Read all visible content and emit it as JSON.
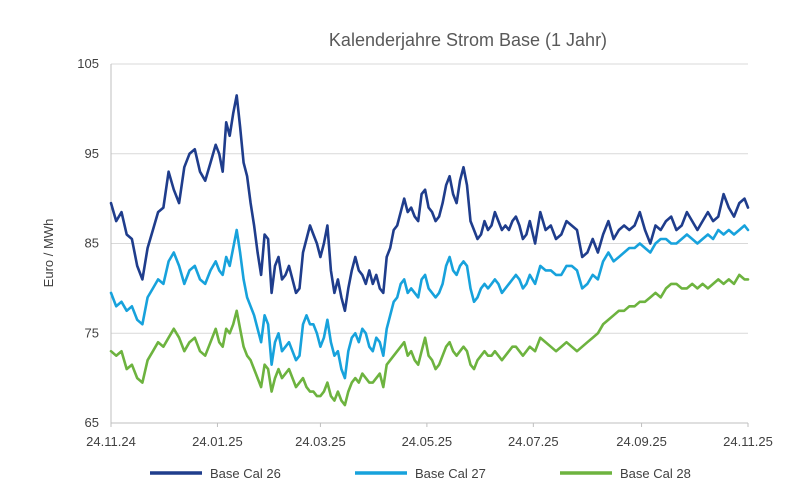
{
  "chart_data": {
    "type": "line",
    "title": "Kalenderjahre Strom Base (1 Jahr)",
    "xlabel": "",
    "ylabel": "Euro / MWh",
    "ylim": [
      65,
      105
    ],
    "yticks": [
      65,
      75,
      85,
      95,
      105
    ],
    "x_tick_labels": [
      "24.11.24",
      "24.01.25",
      "24.03.25",
      "24.05.25",
      "24.07.25",
      "24.09.25",
      "24.11.25"
    ],
    "x_tick_positions": [
      0,
      61,
      120,
      181,
      242,
      304,
      365
    ],
    "x_range": [
      0,
      365
    ],
    "grid": true,
    "legend_position": "bottom",
    "series": [
      {
        "name": "Base Cal 26",
        "color": "#1f3d8c",
        "x": [
          0,
          3,
          6,
          9,
          12,
          15,
          18,
          21,
          24,
          27,
          30,
          33,
          36,
          39,
          42,
          45,
          48,
          51,
          54,
          57,
          60,
          62,
          64,
          66,
          68,
          70,
          72,
          74,
          76,
          78,
          80,
          82,
          84,
          86,
          88,
          90,
          92,
          94,
          96,
          98,
          100,
          102,
          104,
          106,
          108,
          110,
          112,
          114,
          116,
          118,
          120,
          122,
          124,
          126,
          128,
          130,
          132,
          134,
          136,
          138,
          140,
          142,
          144,
          146,
          148,
          150,
          152,
          154,
          156,
          158,
          160,
          162,
          164,
          166,
          168,
          170,
          172,
          174,
          176,
          178,
          180,
          182,
          184,
          186,
          188,
          190,
          192,
          194,
          196,
          198,
          200,
          202,
          204,
          206,
          208,
          210,
          212,
          214,
          216,
          218,
          220,
          222,
          224,
          226,
          228,
          230,
          232,
          234,
          236,
          238,
          240,
          243,
          246,
          249,
          252,
          255,
          258,
          261,
          264,
          267,
          270,
          273,
          276,
          279,
          282,
          285,
          288,
          291,
          294,
          297,
          300,
          303,
          306,
          309,
          312,
          315,
          318,
          321,
          324,
          327,
          330,
          333,
          336,
          339,
          342,
          345,
          348,
          351,
          354,
          357,
          360,
          363,
          365
        ],
        "values": [
          89.5,
          87.5,
          88.5,
          86.0,
          85.5,
          82.5,
          81.0,
          84.5,
          86.5,
          88.5,
          89.0,
          93.0,
          91.0,
          89.5,
          93.5,
          95.0,
          95.5,
          93.0,
          92.0,
          94.0,
          96.0,
          95.0,
          93.0,
          98.5,
          97.0,
          99.5,
          101.5,
          98.0,
          94.0,
          92.5,
          89.5,
          87.0,
          84.0,
          81.5,
          86.0,
          85.5,
          79.5,
          82.5,
          83.5,
          81.0,
          81.5,
          82.5,
          81.0,
          79.5,
          80.0,
          84.0,
          85.5,
          87.0,
          86.0,
          85.0,
          83.5,
          85.0,
          87.0,
          82.0,
          79.5,
          81.0,
          79.0,
          77.5,
          80.0,
          82.0,
          83.5,
          82.0,
          81.5,
          80.5,
          82.0,
          80.5,
          81.5,
          80.0,
          79.5,
          83.5,
          84.5,
          86.5,
          87.0,
          88.5,
          90.0,
          88.5,
          89.0,
          88.0,
          87.5,
          90.5,
          91.0,
          89.0,
          88.5,
          87.5,
          88.0,
          89.5,
          91.5,
          92.5,
          90.5,
          89.5,
          92.0,
          93.5,
          91.5,
          87.5,
          86.5,
          85.5,
          86.0,
          87.5,
          86.5,
          87.0,
          88.5,
          87.5,
          86.5,
          87.0,
          86.5,
          87.5,
          88.0,
          87.0,
          85.5,
          86.0,
          87.5,
          85.0,
          88.5,
          86.5,
          87.0,
          85.5,
          86.0,
          87.5,
          87.0,
          86.5,
          83.5,
          84.0,
          85.5,
          84.0,
          86.0,
          87.5,
          85.5,
          86.5,
          87.0,
          86.5,
          87.0,
          88.5,
          86.5,
          85.0,
          87.0,
          86.5,
          87.5,
          88.0,
          86.5,
          87.0,
          88.5,
          87.5,
          86.5,
          87.5,
          88.5,
          87.5,
          88.0,
          90.5,
          89.0,
          88.0,
          89.5,
          90.0,
          89.0
        ]
      },
      {
        "name": "Base Cal 27",
        "color": "#17a2dc",
        "x": [
          0,
          3,
          6,
          9,
          12,
          15,
          18,
          21,
          24,
          27,
          30,
          33,
          36,
          39,
          42,
          45,
          48,
          51,
          54,
          57,
          60,
          62,
          64,
          66,
          68,
          70,
          72,
          74,
          76,
          78,
          80,
          82,
          84,
          86,
          88,
          90,
          92,
          94,
          96,
          98,
          100,
          102,
          104,
          106,
          108,
          110,
          112,
          114,
          116,
          118,
          120,
          122,
          124,
          126,
          128,
          130,
          132,
          134,
          136,
          138,
          140,
          142,
          144,
          146,
          148,
          150,
          152,
          154,
          156,
          158,
          160,
          162,
          164,
          166,
          168,
          170,
          172,
          174,
          176,
          178,
          180,
          182,
          184,
          186,
          188,
          190,
          192,
          194,
          196,
          198,
          200,
          202,
          204,
          206,
          208,
          210,
          212,
          214,
          216,
          218,
          220,
          222,
          224,
          226,
          228,
          230,
          232,
          234,
          236,
          238,
          240,
          243,
          246,
          249,
          252,
          255,
          258,
          261,
          264,
          267,
          270,
          273,
          276,
          279,
          282,
          285,
          288,
          291,
          294,
          297,
          300,
          303,
          306,
          309,
          312,
          315,
          318,
          321,
          324,
          327,
          330,
          333,
          336,
          339,
          342,
          345,
          348,
          351,
          354,
          357,
          360,
          363,
          365
        ],
        "values": [
          79.5,
          78.0,
          78.5,
          77.5,
          78.0,
          76.5,
          76.0,
          79.0,
          80.0,
          81.0,
          80.5,
          83.0,
          84.0,
          82.5,
          80.5,
          82.0,
          82.5,
          81.0,
          80.5,
          82.0,
          83.0,
          82.0,
          81.5,
          83.5,
          82.5,
          84.5,
          86.5,
          84.0,
          81.0,
          79.0,
          78.0,
          77.0,
          75.5,
          74.0,
          77.0,
          76.0,
          71.5,
          74.0,
          75.0,
          73.0,
          73.5,
          74.0,
          73.0,
          72.0,
          72.5,
          76.0,
          77.0,
          76.0,
          76.0,
          75.0,
          73.5,
          74.5,
          76.5,
          74.0,
          72.5,
          73.0,
          71.0,
          70.0,
          73.0,
          74.5,
          75.0,
          74.0,
          75.5,
          75.0,
          73.5,
          73.0,
          74.5,
          74.0,
          72.5,
          75.5,
          77.0,
          78.5,
          79.0,
          80.5,
          81.0,
          79.5,
          80.0,
          79.5,
          79.0,
          81.0,
          81.5,
          80.0,
          79.5,
          79.0,
          79.5,
          80.5,
          82.5,
          83.5,
          82.0,
          81.5,
          82.5,
          83.0,
          82.5,
          80.0,
          78.5,
          79.0,
          80.0,
          80.5,
          80.0,
          80.5,
          81.0,
          80.5,
          79.5,
          80.0,
          80.5,
          81.0,
          81.5,
          81.0,
          80.0,
          80.5,
          81.5,
          80.5,
          82.5,
          82.0,
          82.0,
          81.5,
          81.5,
          82.5,
          82.5,
          82.0,
          80.0,
          80.5,
          81.5,
          81.0,
          83.0,
          84.0,
          83.0,
          83.5,
          84.0,
          84.5,
          84.5,
          85.0,
          84.5,
          84.0,
          85.0,
          85.5,
          85.5,
          85.0,
          85.0,
          85.5,
          86.0,
          85.5,
          85.0,
          85.5,
          86.0,
          85.5,
          86.5,
          86.0,
          86.5,
          86.0,
          86.5,
          87.0,
          86.5
        ]
      },
      {
        "name": "Base Cal 28",
        "color": "#6db33f",
        "x": [
          0,
          3,
          6,
          9,
          12,
          15,
          18,
          21,
          24,
          27,
          30,
          33,
          36,
          39,
          42,
          45,
          48,
          51,
          54,
          57,
          60,
          62,
          64,
          66,
          68,
          70,
          72,
          74,
          76,
          78,
          80,
          82,
          84,
          86,
          88,
          90,
          92,
          94,
          96,
          98,
          100,
          102,
          104,
          106,
          108,
          110,
          112,
          114,
          116,
          118,
          120,
          122,
          124,
          126,
          128,
          130,
          132,
          134,
          136,
          138,
          140,
          142,
          144,
          146,
          148,
          150,
          152,
          154,
          156,
          158,
          160,
          162,
          164,
          166,
          168,
          170,
          172,
          174,
          176,
          178,
          180,
          182,
          184,
          186,
          188,
          190,
          192,
          194,
          196,
          198,
          200,
          202,
          204,
          206,
          208,
          210,
          212,
          214,
          216,
          218,
          220,
          222,
          224,
          226,
          228,
          230,
          232,
          234,
          236,
          238,
          240,
          243,
          246,
          249,
          252,
          255,
          258,
          261,
          264,
          267,
          270,
          273,
          276,
          279,
          282,
          285,
          288,
          291,
          294,
          297,
          300,
          303,
          306,
          309,
          312,
          315,
          318,
          321,
          324,
          327,
          330,
          333,
          336,
          339,
          342,
          345,
          348,
          351,
          354,
          357,
          360,
          363,
          365
        ],
        "values": [
          73.0,
          72.5,
          73.0,
          71.0,
          71.5,
          70.0,
          69.5,
          72.0,
          73.0,
          74.0,
          73.5,
          74.5,
          75.5,
          74.5,
          73.0,
          74.0,
          74.5,
          73.0,
          72.5,
          74.0,
          75.5,
          74.0,
          73.5,
          75.5,
          75.0,
          76.0,
          77.5,
          75.5,
          73.5,
          72.5,
          72.0,
          71.0,
          70.0,
          69.0,
          71.5,
          71.0,
          68.5,
          70.0,
          71.0,
          70.0,
          70.5,
          71.0,
          70.0,
          69.0,
          69.5,
          70.0,
          69.0,
          68.5,
          68.5,
          68.0,
          68.0,
          68.5,
          69.5,
          68.0,
          67.5,
          68.5,
          67.5,
          67.0,
          68.5,
          69.5,
          70.0,
          69.5,
          70.5,
          70.0,
          69.5,
          69.5,
          70.0,
          70.5,
          69.0,
          71.5,
          72.0,
          72.5,
          73.0,
          73.5,
          74.0,
          72.5,
          73.0,
          72.0,
          71.5,
          73.0,
          74.5,
          72.5,
          72.0,
          71.0,
          71.5,
          72.5,
          73.5,
          74.0,
          73.0,
          72.5,
          73.0,
          73.5,
          73.0,
          71.5,
          71.0,
          72.0,
          72.5,
          73.0,
          72.5,
          72.5,
          73.0,
          72.5,
          72.0,
          72.5,
          73.0,
          73.5,
          73.5,
          73.0,
          72.5,
          73.0,
          73.5,
          73.0,
          74.5,
          74.0,
          73.5,
          73.0,
          73.5,
          74.0,
          73.5,
          73.0,
          73.5,
          74.0,
          74.5,
          75.0,
          76.0,
          76.5,
          77.0,
          77.5,
          77.5,
          78.0,
          78.0,
          78.5,
          78.5,
          79.0,
          79.5,
          79.0,
          80.0,
          80.5,
          80.5,
          80.0,
          80.0,
          80.5,
          80.0,
          80.5,
          80.0,
          80.5,
          81.0,
          80.5,
          81.0,
          80.5,
          81.5,
          81.0,
          81.0
        ]
      }
    ]
  }
}
